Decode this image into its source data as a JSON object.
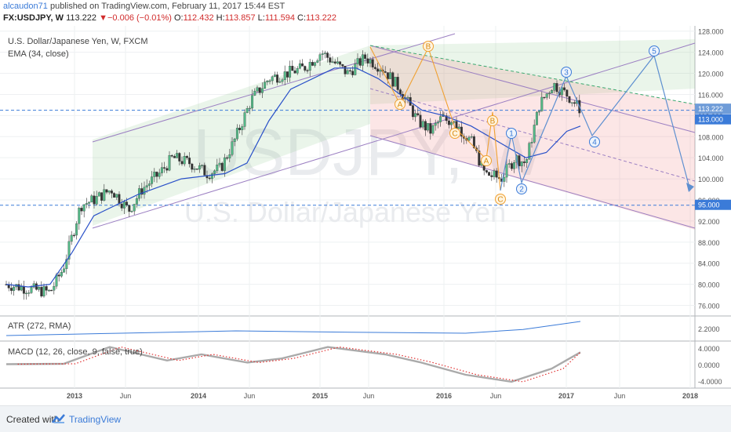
{
  "header": {
    "author": "alcaudon71",
    "published_text": "published on TradingView.com, February 11, 2017 15:44 EST",
    "symbol": "FX:USDJPY, W",
    "last": "113.222",
    "change": "▼−0.006 (−0.01%)",
    "open_label": "O:",
    "open": "112.432",
    "high_label": "H:",
    "high": "113.857",
    "low_label": "L:",
    "low": "111.594",
    "close_label": "C:",
    "close": "113.222"
  },
  "main_pane": {
    "title": "U.S. Dollar/Japanese Yen, W, FXCM",
    "ema_label": "EMA (34, close)",
    "watermark_symbol": "USDJPY, W",
    "watermark_name": "U.S. Dollar/Japanese Yen",
    "price_badge": "113.222",
    "level_113": "113.000",
    "level_95": "95.000"
  },
  "atr_pane": {
    "title": "ATR (272, RMA)",
    "tick": "2.2000"
  },
  "macd_pane": {
    "title": "MACD (12, 26, close, 9, false, true)",
    "ticks": [
      "4.0000",
      "0.0000",
      "-4.0000"
    ]
  },
  "wave_labels": {
    "orange": [
      "A",
      "B",
      "C",
      "A",
      "B",
      "C"
    ],
    "blue": [
      "1",
      "2",
      "3",
      "4",
      "5"
    ]
  },
  "footer": {
    "created": "Created with",
    "brand": "TradingView"
  },
  "chart_data": {
    "type": "candlestick",
    "title": "U.S. Dollar/Japanese Yen, W, FXCM",
    "x_ticks": [
      "2013",
      "Jun",
      "2014",
      "Jun",
      "2015",
      "Jun",
      "2016",
      "Jun",
      "2017",
      "Jun",
      "2018"
    ],
    "y_ticks": [
      "128.000",
      "124.000",
      "120.000",
      "116.000",
      "112.000",
      "108.000",
      "104.000",
      "100.000",
      "96.000",
      "92.000",
      "88.000",
      "84.000",
      "80.000",
      "76.000"
    ],
    "ylim": [
      74,
      129
    ],
    "price_path": [
      [
        0,
        80
      ],
      [
        0.06,
        79
      ],
      [
        0.1,
        78.5
      ],
      [
        0.13,
        83
      ],
      [
        0.17,
        95
      ],
      [
        0.2,
        96
      ],
      [
        0.24,
        98
      ],
      [
        0.28,
        94
      ],
      [
        0.31,
        98
      ],
      [
        0.35,
        101
      ],
      [
        0.38,
        104
      ],
      [
        0.42,
        103
      ],
      [
        0.46,
        101
      ],
      [
        0.49,
        102
      ],
      [
        0.52,
        107
      ],
      [
        0.56,
        115
      ],
      [
        0.6,
        119
      ],
      [
        0.64,
        120
      ],
      [
        0.68,
        121
      ],
      [
        0.72,
        124
      ],
      [
        0.75,
        122
      ],
      [
        0.78,
        120
      ],
      [
        0.82,
        123
      ],
      [
        0.86,
        121
      ],
      [
        0.9,
        117
      ],
      [
        0.94,
        111
      ],
      [
        0.97,
        109
      ],
      [
        1.0,
        112
      ]
    ],
    "price_path_2016": [
      [
        0,
        112
      ],
      [
        0.1,
        110
      ],
      [
        0.2,
        107
      ],
      [
        0.3,
        101
      ],
      [
        0.42,
        100
      ],
      [
        0.52,
        104
      ],
      [
        0.6,
        103
      ],
      [
        0.7,
        114
      ],
      [
        0.8,
        118
      ],
      [
        0.9,
        116
      ],
      [
        1.0,
        113.2
      ]
    ],
    "ema_path": [
      [
        0,
        80
      ],
      [
        0.05,
        79.5
      ],
      [
        0.1,
        80
      ],
      [
        0.15,
        86
      ],
      [
        0.2,
        93
      ],
      [
        0.3,
        97
      ],
      [
        0.4,
        100
      ],
      [
        0.5,
        101
      ],
      [
        0.55,
        103
      ],
      [
        0.6,
        111
      ],
      [
        0.65,
        117
      ],
      [
        0.7,
        119
      ],
      [
        0.75,
        121
      ],
      [
        0.8,
        121
      ],
      [
        0.85,
        119
      ],
      [
        0.9,
        116
      ],
      [
        0.95,
        113
      ],
      [
        1.0,
        112
      ]
    ],
    "ema_path_2016": [
      [
        0,
        112
      ],
      [
        0.2,
        110
      ],
      [
        0.4,
        107
      ],
      [
        0.6,
        104
      ],
      [
        0.75,
        105
      ],
      [
        0.9,
        109
      ],
      [
        1.0,
        110
      ]
    ],
    "atr_path": [
      [
        0,
        2.05
      ],
      [
        0.2,
        2.1
      ],
      [
        0.4,
        2.15
      ],
      [
        0.6,
        2.12
      ],
      [
        0.8,
        2.1
      ],
      [
        0.9,
        2.18
      ],
      [
        1.0,
        2.35
      ]
    ],
    "macd_path": [
      [
        0,
        0.1
      ],
      [
        0.1,
        0.2
      ],
      [
        0.18,
        4.3
      ],
      [
        0.28,
        1.0
      ],
      [
        0.34,
        2.5
      ],
      [
        0.42,
        0.5
      ],
      [
        0.48,
        1.5
      ],
      [
        0.56,
        4.3
      ],
      [
        0.66,
        2.5
      ],
      [
        0.72,
        0.6
      ],
      [
        0.8,
        -2.5
      ],
      [
        0.88,
        -4.2
      ],
      [
        0.95,
        -1.0
      ],
      [
        1.0,
        3.0
      ]
    ],
    "levels": [
      113.0,
      95.0
    ]
  }
}
